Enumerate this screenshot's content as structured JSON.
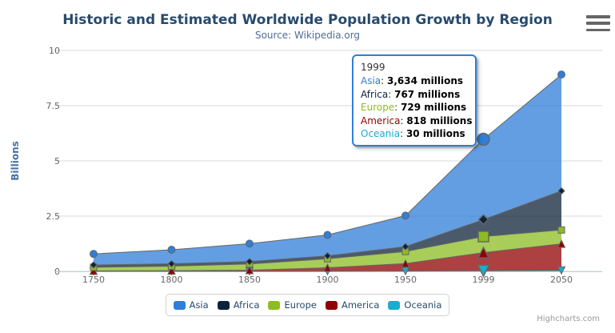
{
  "title": "Historic and Estimated Worldwide Population Growth by Region",
  "subtitle": "Source: Wikipedia.org",
  "credits": "Highcharts.com",
  "context_menu_icon": "hamburger-icon",
  "accent_colors": {
    "title": "#274b6d",
    "subtitle": "#4f6e96",
    "axis_label": "#666666",
    "y_axis_title": "#4572a7",
    "gridline": "#d8d8d8",
    "axis_line": "#c0d0e0",
    "series_outline": "#666666",
    "tooltip_border": "#2f7ed8"
  },
  "chart_data": {
    "type": "area",
    "stacking": "normal",
    "title": "Historic and Estimated Worldwide Population Growth by Region",
    "subtitle": "Source: Wikipedia.org",
    "categories": [
      "1750",
      "1800",
      "1850",
      "1900",
      "1950",
      "1999",
      "2050"
    ],
    "series": [
      {
        "name": "Asia",
        "color": "#2f7ed8",
        "marker": "circle",
        "values": [
          502,
          635,
          809,
          947,
          1402,
          3634,
          5268
        ]
      },
      {
        "name": "Africa",
        "color": "#0d233a",
        "marker": "diamond",
        "values": [
          106,
          107,
          111,
          133,
          221,
          767,
          1766
        ]
      },
      {
        "name": "Europe",
        "color": "#8bbc21",
        "marker": "square",
        "values": [
          163,
          203,
          276,
          408,
          547,
          729,
          628
        ]
      },
      {
        "name": "America",
        "color": "#910000",
        "marker": "triangle",
        "values": [
          18,
          31,
          54,
          156,
          339,
          818,
          1201
        ]
      },
      {
        "name": "Oceania",
        "color": "#1aadce",
        "marker": "triangle-down",
        "values": [
          2,
          2,
          2,
          6,
          13,
          30,
          46
        ]
      }
    ],
    "values_unit": "millions",
    "xlabel": "",
    "ylabel": "Billions",
    "ylim": [
      0,
      10
    ],
    "yticks": [
      0,
      2.5,
      5,
      7.5,
      10
    ],
    "ytick_labels": [
      "0",
      "2.5",
      "5",
      "7.5",
      "10"
    ],
    "grid": true,
    "fill_opacity": 0.75,
    "legend_position": "bottom",
    "hovered_category_index": 5
  },
  "tooltip": {
    "header": "1999",
    "unit": "millions",
    "rows": [
      {
        "name": "Asia",
        "color": "#2f7ed8",
        "value": "3,634 millions"
      },
      {
        "name": "Africa",
        "color": "#0d233a",
        "value": "767 millions"
      },
      {
        "name": "Europe",
        "color": "#8bbc21",
        "value": "729 millions"
      },
      {
        "name": "America",
        "color": "#910000",
        "value": "818 millions"
      },
      {
        "name": "Oceania",
        "color": "#1aadce",
        "value": "30 millions"
      }
    ]
  },
  "legend": {
    "items": [
      {
        "label": "Asia",
        "color": "#2f7ed8"
      },
      {
        "label": "Africa",
        "color": "#0d233a"
      },
      {
        "label": "Europe",
        "color": "#8bbc21"
      },
      {
        "label": "America",
        "color": "#910000"
      },
      {
        "label": "Oceania",
        "color": "#1aadce"
      }
    ]
  }
}
